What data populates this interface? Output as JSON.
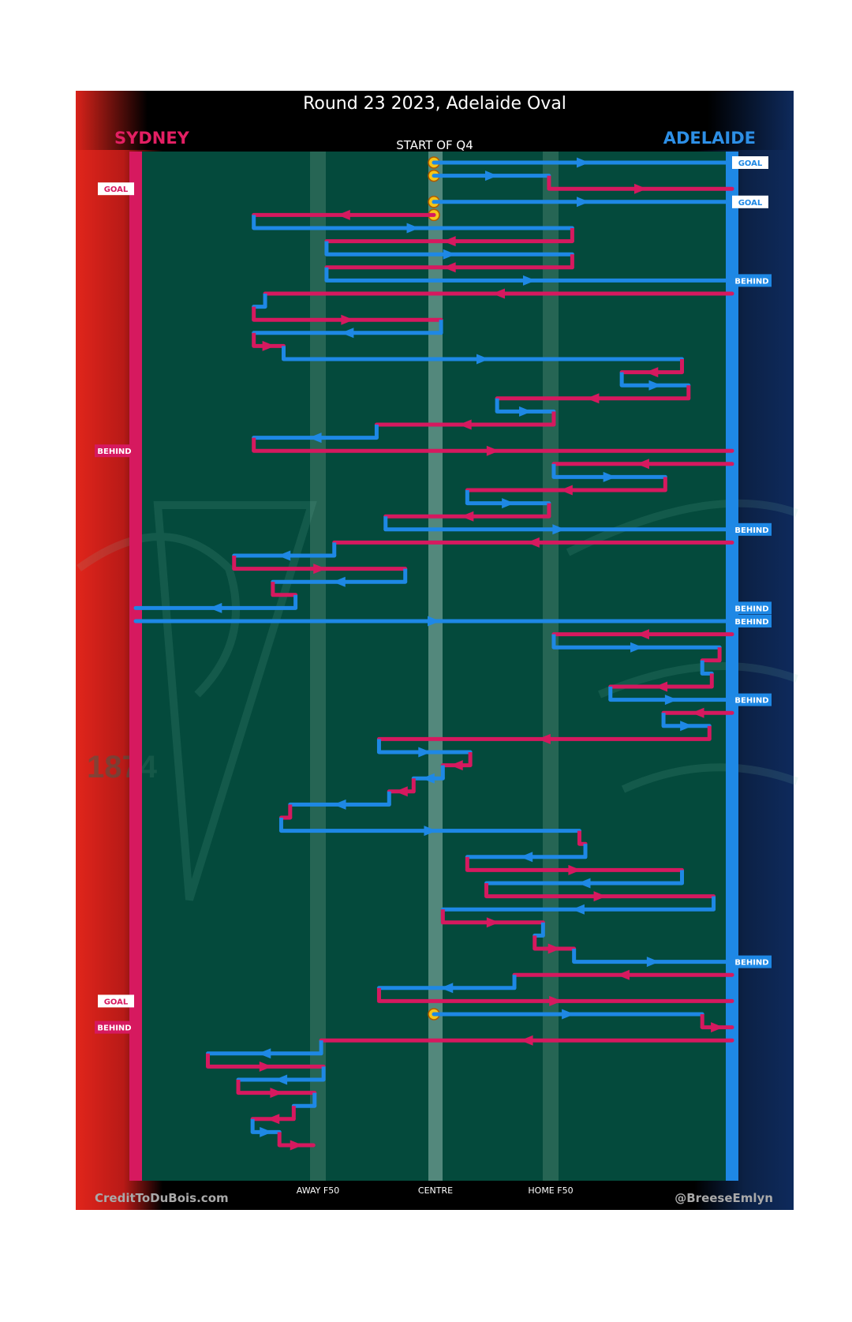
{
  "title": "Round 23 2023, Adelaide Oval",
  "subtitle": "START OF Q4",
  "teams": {
    "left": "SYDNEY",
    "right": "ADELAIDE"
  },
  "watermarks": {
    "left_year": "1874"
  },
  "axis_labels": {
    "away_f50": "AWAY F50",
    "centre": "CENTRE",
    "home_f50": "HOME F50"
  },
  "credits": {
    "left": "CreditToDuBois.com",
    "right": "@BreeseEmlyn"
  },
  "colors": {
    "sydney": "#d6195f",
    "adelaide": "#1e88e5",
    "field": "#044a3c",
    "stoppage": "#f5c518",
    "background": "#000000"
  },
  "chart_data": {
    "type": "flow",
    "x_units": "field position (0 = Sydney goal, 100 = Adelaide goal)",
    "markers": [
      {
        "name": "AWAY F50",
        "x": 30.3
      },
      {
        "name": "CENTRE",
        "x": 50
      },
      {
        "name": "HOME F50",
        "x": 70.3
      }
    ],
    "outcome_labels": {
      "goal": "GOAL",
      "behind": "BEHIND"
    },
    "chains": [
      {
        "team": "adelaide",
        "start": "centre-bounce",
        "path": [
          50,
          100
        ],
        "result": "GOAL"
      },
      {
        "team": "adelaide",
        "start": "centre-bounce",
        "path": [
          50,
          69.3,
          100
        ],
        "result": "GOAL"
      },
      {
        "team": "adelaide",
        "start": "centre-bounce",
        "path": [
          50,
          100
        ],
        "result": "GOAL"
      },
      {
        "team": "sydney",
        "start": "centre-bounce",
        "path": [
          50,
          19.8,
          73.2,
          32,
          73.2,
          32,
          100
        ],
        "result": "BEHIND"
      },
      {
        "team": "sydney",
        "start": "kick-in",
        "path": [
          100,
          21.7,
          19.8,
          51.2,
          19.8,
          24.8,
          91.6,
          81.5,
          92.7,
          60.6,
          70.1,
          40.4,
          19.8,
          100
        ],
        "result": "BEHIND"
      },
      {
        "team": "sydney",
        "start": "kick-in",
        "path": [
          100,
          70.1,
          88.8,
          55.6,
          69.3,
          41.9,
          100
        ],
        "result": "BEHIND"
      },
      {
        "team": "sydney",
        "start": "kick-in",
        "path": [
          100,
          33.3,
          16.5,
          45.2,
          23,
          26.8,
          0
        ],
        "result": "BEHIND"
      },
      {
        "team": "adelaide",
        "start": "kick-in",
        "path": [
          0,
          100
        ],
        "result": "BEHIND"
      },
      {
        "team": "sydney",
        "start": "kick-in",
        "path": [
          100,
          70.1,
          97.9,
          95,
          96.6,
          79.6,
          100
        ],
        "result": "BEHIND"
      },
      {
        "team": "sydney",
        "start": "kick-in",
        "path": [
          100,
          88.5,
          96.2,
          40.8,
          56.1,
          51.5,
          46.6,
          42.5,
          25.9,
          24.4,
          74.4,
          75.4,
          55.6,
          91.6,
          58.8,
          96.9,
          51.5,
          68.3,
          66.9,
          73.5,
          100
        ],
        "result": "BEHIND"
      },
      {
        "team": "sydney",
        "start": "kick-in",
        "path": [
          100,
          63.5,
          40.8,
          100
        ],
        "result": "GOAL"
      },
      {
        "team": "adelaide",
        "start": "centre-bounce",
        "path": [
          50,
          95,
          100
        ],
        "result": "BEHIND"
      },
      {
        "team": "sydney",
        "start": "kick-in",
        "path": [
          100,
          31.1,
          12.1,
          31.5,
          17.2,
          30,
          26.5,
          19.6,
          24.1,
          29.8
        ],
        "result": ""
      }
    ]
  }
}
